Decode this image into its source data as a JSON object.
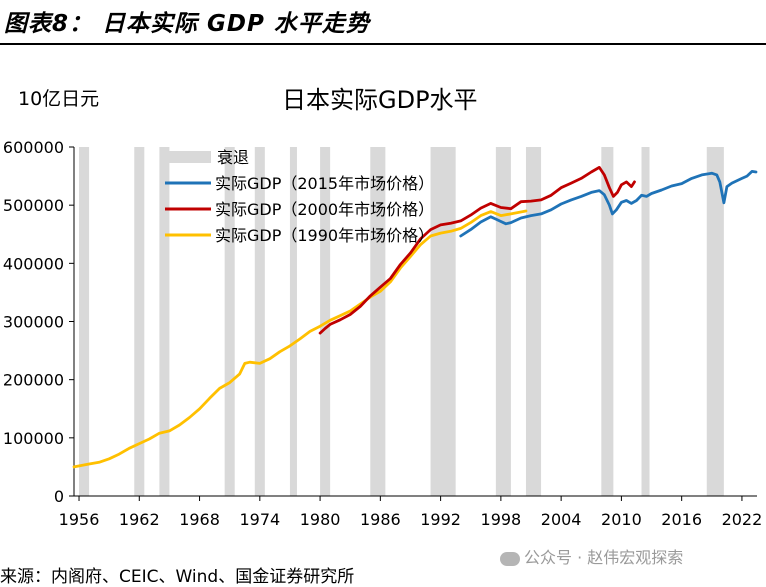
{
  "figure_title": "图表8： 日本实际 GDP 水平走势",
  "source": "来源：内阁府、CEIC、Wind、国金证券研究所",
  "watermark": "公众号 · 赵伟宏观探索",
  "colors": {
    "recession": "#d9d9d9",
    "gdp2015": "#1f73b7",
    "gdp2000": "#c00000",
    "gdp1990": "#ffc000"
  },
  "chart_data": {
    "type": "line",
    "title": "日本实际GDP水平",
    "unit_label": "10亿日元",
    "ylim": [
      0,
      600000
    ],
    "xlim": [
      1955.5,
      2023.5
    ],
    "y_ticks": [
      0,
      100000,
      200000,
      300000,
      400000,
      500000,
      600000
    ],
    "x_ticks": [
      1956,
      1962,
      1968,
      1974,
      1980,
      1986,
      1992,
      1998,
      2004,
      2010,
      2016,
      2022
    ],
    "recessions": {
      "name": "衰退",
      "periods": [
        [
          1956.0,
          1957.0
        ],
        [
          1961.5,
          1962.5
        ],
        [
          1964.0,
          1965.0
        ],
        [
          1970.5,
          1971.5
        ],
        [
          1973.5,
          1974.5
        ],
        [
          1977.0,
          1977.7
        ],
        [
          1980.0,
          1981.0
        ],
        [
          1985.0,
          1986.5
        ],
        [
          1991.0,
          1993.5
        ],
        [
          1997.5,
          1999.0
        ],
        [
          2000.5,
          2002.0
        ],
        [
          2008.0,
          2009.2
        ],
        [
          2012.0,
          2012.8
        ],
        [
          2018.5,
          2020.2
        ]
      ]
    },
    "series": [
      {
        "name": "实际GDP（2015年市场价格）",
        "color": "#1f73b7",
        "x": [
          1994,
          1995,
          1996,
          1997,
          1997.5,
          1998,
          1998.5,
          1999,
          2000,
          2001,
          2002,
          2003,
          2004,
          2005,
          2006,
          2007,
          2007.8,
          2008.3,
          2008.8,
          2009.1,
          2009.5,
          2010,
          2010.5,
          2011,
          2011.5,
          2012,
          2012.5,
          2013,
          2014,
          2015,
          2016,
          2017,
          2018,
          2019,
          2019.5,
          2019.8,
          2020.2,
          2020.5,
          2021,
          2021.5,
          2022,
          2022.5,
          2023,
          2023.4
        ],
        "values": [
          447000,
          458000,
          471000,
          480000,
          476000,
          472000,
          468000,
          470000,
          478000,
          482000,
          485000,
          492000,
          502000,
          509000,
          515000,
          522000,
          525000,
          518000,
          500000,
          485000,
          492000,
          505000,
          508000,
          503000,
          508000,
          517000,
          515000,
          520000,
          526000,
          533000,
          537000,
          546000,
          552000,
          555000,
          552000,
          540000,
          504000,
          532000,
          538000,
          542000,
          546000,
          550000,
          558000,
          557000
        ]
      },
      {
        "name": "实际GDP（2000年市场价格）",
        "color": "#c00000",
        "x": [
          1980,
          1980.5,
          1981,
          1982,
          1983,
          1984,
          1985,
          1986,
          1987,
          1988,
          1989,
          1990,
          1991,
          1992,
          1993,
          1994,
          1995,
          1996,
          1997,
          1998,
          1999,
          2000,
          2001,
          2002,
          2003,
          2004,
          2005,
          2006,
          2007,
          2007.8,
          2008.3,
          2008.8,
          2009.2,
          2009.6,
          2010,
          2010.5,
          2011,
          2011.3
        ],
        "values": [
          280000,
          288000,
          295000,
          303000,
          312000,
          326000,
          344000,
          359000,
          374000,
          398000,
          418000,
          442000,
          458000,
          466000,
          469000,
          473000,
          483000,
          495000,
          503000,
          496000,
          494000,
          506000,
          507000,
          509000,
          517000,
          530000,
          538000,
          546000,
          557000,
          565000,
          552000,
          530000,
          515000,
          522000,
          535000,
          540000,
          532000,
          540000
        ]
      },
      {
        "name": "实际GDP（1990年市场价格）",
        "color": "#ffc000",
        "x": [
          1955.5,
          1957,
          1958,
          1959,
          1960,
          1961,
          1962,
          1963,
          1964,
          1965,
          1966,
          1967,
          1968,
          1969,
          1970,
          1971,
          1972,
          1972.5,
          1973,
          1974,
          1975,
          1976,
          1977,
          1978,
          1979,
          1980,
          1981,
          1982,
          1983,
          1984,
          1985,
          1986,
          1987,
          1988,
          1989,
          1990,
          1991,
          1992,
          1993,
          1994,
          1995,
          1996,
          1997,
          1998,
          1999,
          2000.5
        ],
        "values": [
          50000,
          55000,
          58000,
          64000,
          72000,
          82000,
          90000,
          98000,
          108000,
          112000,
          122000,
          135000,
          150000,
          168000,
          185000,
          195000,
          210000,
          228000,
          230000,
          228000,
          236000,
          248000,
          258000,
          270000,
          283000,
          292000,
          302000,
          310000,
          318000,
          330000,
          342000,
          352000,
          368000,
          392000,
          412000,
          432000,
          447000,
          452000,
          455000,
          460000,
          470000,
          482000,
          489000,
          482000,
          485000,
          490000
        ]
      }
    ]
  }
}
